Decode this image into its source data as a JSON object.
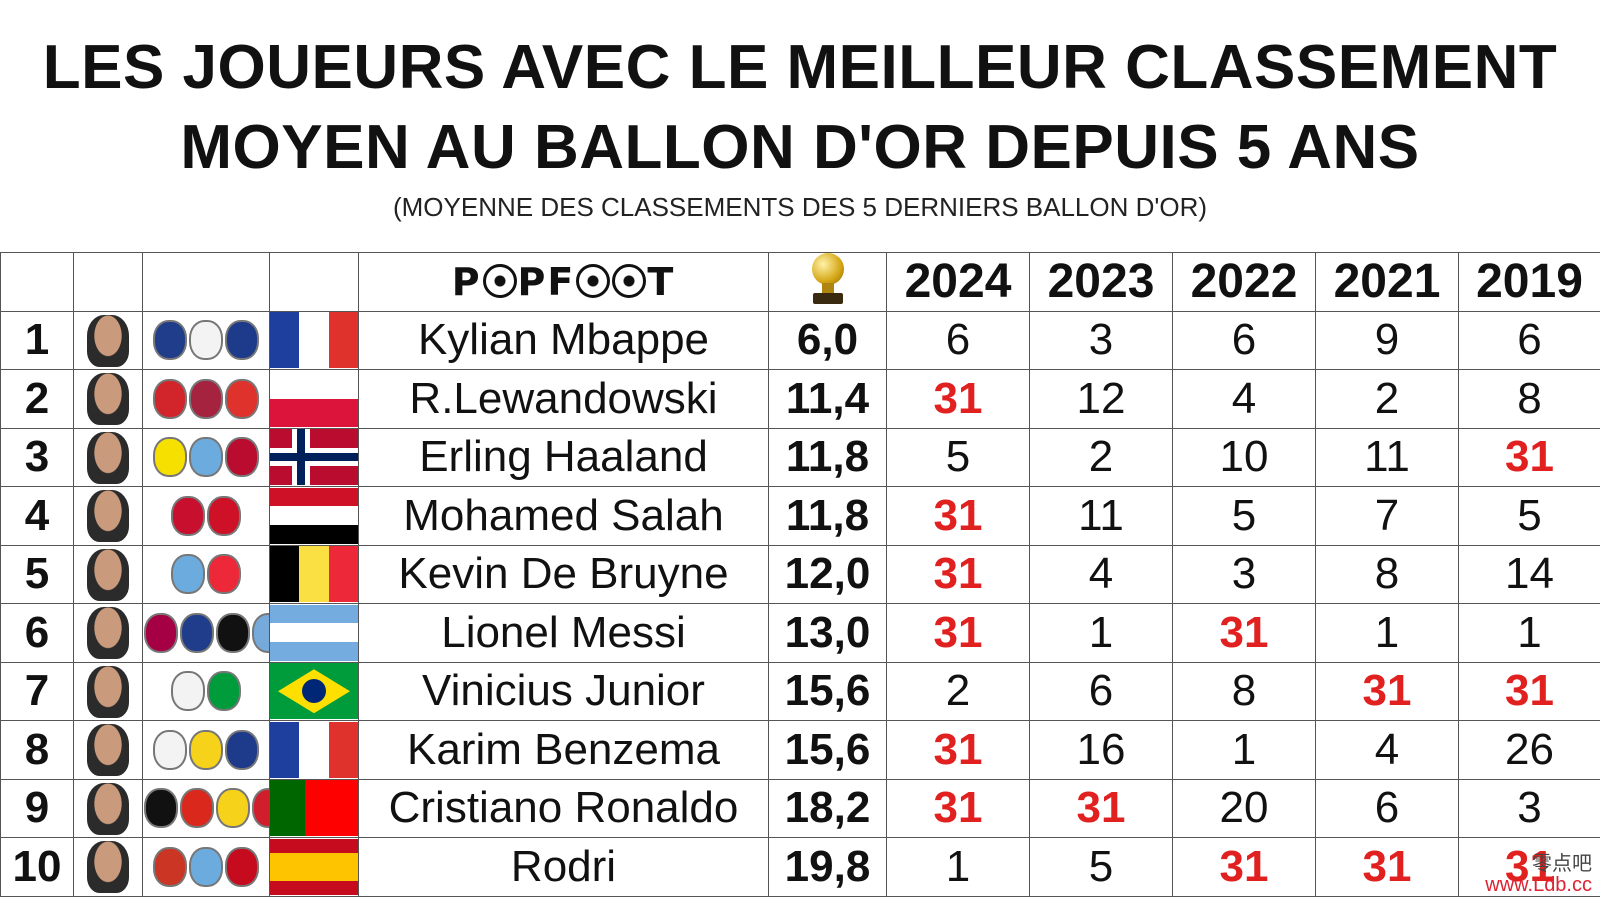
{
  "title_line1": "LES JOUEURS AVEC LE MEILLEUR CLASSEMENT",
  "title_line2": "MOYEN AU BALLON D'OR DEPUIS 5 ANS",
  "subtitle": "(MOYENNE DES CLASSEMENTS DES 5 DERNIERS BALLON D'OR)",
  "brand": "POPFOOT",
  "years": [
    "2024",
    "2023",
    "2022",
    "2021",
    "2019"
  ],
  "absent_value": "31",
  "colors": {
    "absent": "#e12020",
    "text": "#111111",
    "border": "#555555"
  },
  "players": [
    {
      "rank": "1",
      "name": "Kylian Mbappe",
      "avg": "6,0",
      "ranks": [
        "6",
        "3",
        "6",
        "9",
        "6"
      ],
      "clubs": [
        "#1f3d8a",
        "#f3f3f3",
        "#1e3a8a"
      ],
      "flag": {
        "dir": "v",
        "stripes": [
          "#1f3f9f",
          "#ffffff",
          "#e0322d"
        ]
      }
    },
    {
      "rank": "2",
      "name": "R.Lewandowski",
      "avg": "11,4",
      "ranks": [
        "31",
        "12",
        "4",
        "2",
        "8"
      ],
      "clubs": [
        "#d2252b",
        "#a62340",
        "#e0322d"
      ],
      "flag": {
        "dir": "h",
        "stripes": [
          "#ffffff",
          "#dc143c"
        ]
      }
    },
    {
      "rank": "3",
      "name": "Erling Haaland",
      "avg": "11,8",
      "ranks": [
        "5",
        "2",
        "10",
        "11",
        "31"
      ],
      "clubs": [
        "#f6e000",
        "#6cabdd",
        "#ba0c2f"
      ],
      "flag": {
        "dir": "nordic",
        "stripes": [
          "#ba0c2f",
          "#ffffff",
          "#00205b"
        ]
      }
    },
    {
      "rank": "4",
      "name": "Mohamed Salah",
      "avg": "11,8",
      "ranks": [
        "31",
        "11",
        "5",
        "7",
        "5"
      ],
      "clubs": [
        "#c8102e",
        "#ce1126"
      ],
      "flag": {
        "dir": "h",
        "stripes": [
          "#ce1126",
          "#ffffff",
          "#000000"
        ]
      }
    },
    {
      "rank": "5",
      "name": "Kevin De Bruyne",
      "avg": "12,0",
      "ranks": [
        "31",
        "4",
        "3",
        "8",
        "14"
      ],
      "clubs": [
        "#6cabdd",
        "#ed2939"
      ],
      "flag": {
        "dir": "v",
        "stripes": [
          "#000000",
          "#fae042",
          "#ed2939"
        ]
      }
    },
    {
      "rank": "6",
      "name": "Lionel Messi",
      "avg": "13,0",
      "ranks": [
        "31",
        "1",
        "31",
        "1",
        "1"
      ],
      "clubs": [
        "#a50044",
        "#1f3d8a",
        "#111111",
        "#75aadb"
      ],
      "flag": {
        "dir": "h",
        "stripes": [
          "#74acdf",
          "#ffffff",
          "#74acdf"
        ]
      }
    },
    {
      "rank": "7",
      "name": "Vinicius Junior",
      "avg": "15,6",
      "ranks": [
        "2",
        "6",
        "8",
        "31",
        "31"
      ],
      "clubs": [
        "#f3f3f3",
        "#009c3b"
      ],
      "flag": {
        "dir": "brazil",
        "stripes": [
          "#009c3b",
          "#ffdf00",
          "#002776"
        ]
      }
    },
    {
      "rank": "8",
      "name": "Karim Benzema",
      "avg": "15,6",
      "ranks": [
        "31",
        "16",
        "1",
        "4",
        "26"
      ],
      "clubs": [
        "#f3f3f3",
        "#f6d21a",
        "#1e3a8a"
      ],
      "flag": {
        "dir": "v",
        "stripes": [
          "#1f3f9f",
          "#ffffff",
          "#e0322d"
        ]
      }
    },
    {
      "rank": "9",
      "name": "Cristiano Ronaldo",
      "avg": "18,2",
      "ranks": [
        "31",
        "31",
        "20",
        "6",
        "3"
      ],
      "clubs": [
        "#111111",
        "#da291c",
        "#f6d21a",
        "#d01e2c"
      ],
      "flag": {
        "dir": "v2",
        "stripes": [
          "#006600",
          "#ff0000"
        ]
      }
    },
    {
      "rank": "10",
      "name": "Rodri",
      "avg": "19,8",
      "ranks": [
        "1",
        "5",
        "31",
        "31",
        "31"
      ],
      "clubs": [
        "#cb3524",
        "#6cabdd",
        "#c60b1e"
      ],
      "flag": {
        "dir": "h3",
        "stripes": [
          "#c60b1e",
          "#ffc400",
          "#c60b1e"
        ]
      }
    }
  ],
  "watermark": {
    "line1": "零点吧",
    "line2": "www.Ldb.cc"
  }
}
